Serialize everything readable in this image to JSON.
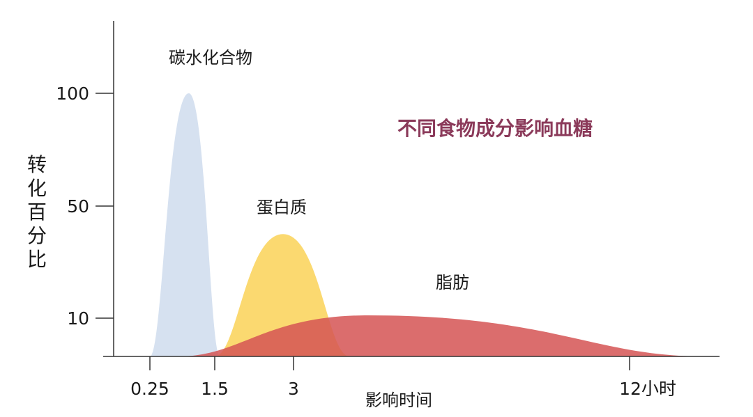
{
  "chart_data": {
    "type": "area",
    "title": "不同食物成分影响血糖",
    "xlabel": "影响时间",
    "ylabel": "转化百分比",
    "x_ticks": [
      "0.25",
      "1.5",
      "3",
      "12小时"
    ],
    "y_ticks": [
      100,
      50,
      10
    ],
    "grid": false,
    "legend": "none",
    "series": [
      {
        "name": "碳水化合物",
        "color": "#d6e1f0",
        "points": [
          [
            0.25,
            0
          ],
          [
            1.0,
            100
          ],
          [
            1.6,
            0
          ]
        ]
      },
      {
        "name": "蛋白质",
        "color": "#fbd768",
        "points": [
          [
            1.5,
            0
          ],
          [
            2.8,
            40
          ],
          [
            4.5,
            0
          ]
        ]
      },
      {
        "name": "脂肪",
        "color": "#d55353",
        "points": [
          [
            0.8,
            0
          ],
          [
            5.0,
            11
          ],
          [
            12.5,
            0
          ]
        ]
      }
    ]
  }
}
